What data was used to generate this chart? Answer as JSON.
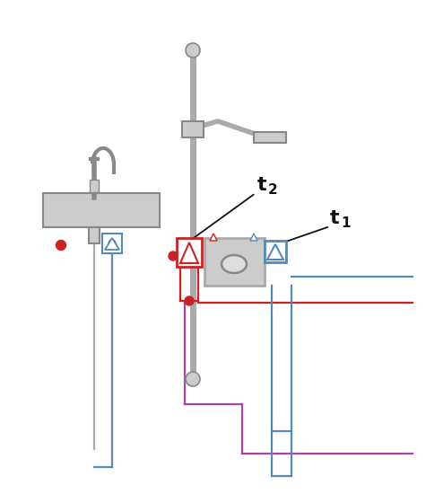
{
  "bg_color": "#ffffff",
  "gray": "#aaaaaa",
  "dark_gray": "#888888",
  "light_gray": "#cccccc",
  "blue": "#5588bb",
  "red": "#cc2222",
  "purple": "#aa44aa",
  "black": "#111111",
  "figsize": [
    4.75,
    5.5
  ],
  "dpi": 100,
  "t1_label": "t",
  "t1_sub": "1",
  "t2_label": "t",
  "t2_sub": "2"
}
